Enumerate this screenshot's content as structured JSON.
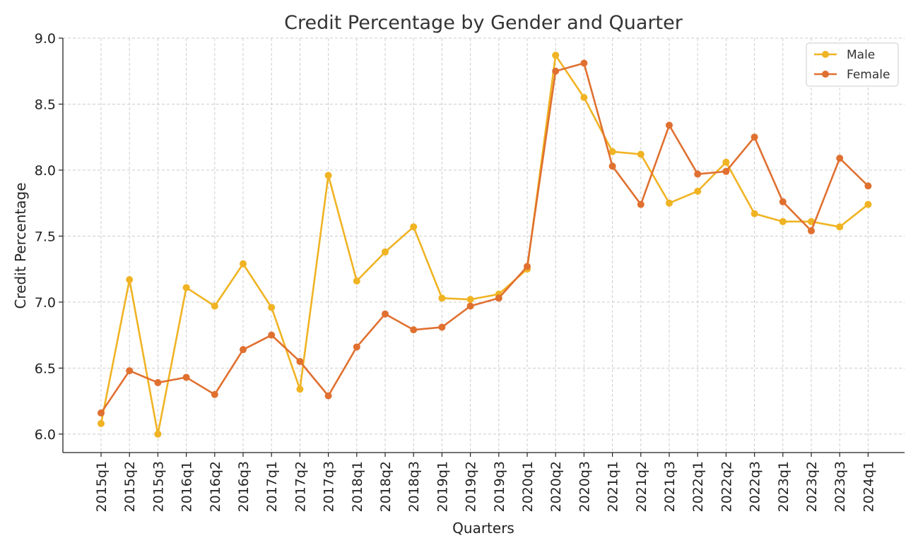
{
  "chart_data": {
    "type": "line",
    "title": "Credit Percentage by Gender and Quarter",
    "xlabel": "Quarters",
    "ylabel": "Credit Percentage",
    "ylim": [
      5.86,
      9.0
    ],
    "yticks": [
      "6.0",
      "6.5",
      "7.0",
      "7.5",
      "8.0",
      "8.5",
      "9.0"
    ],
    "grid": true,
    "legend_position": "top-right",
    "categories": [
      "2015q1",
      "2015q2",
      "2015q3",
      "2016q1",
      "2016q2",
      "2016q3",
      "2017q1",
      "2017q2",
      "2017q3",
      "2018q1",
      "2018q2",
      "2018q3",
      "2019q1",
      "2019q2",
      "2019q3",
      "2020q1",
      "2020q2",
      "2020q3",
      "2021q1",
      "2021q2",
      "2021q3",
      "2022q1",
      "2022q2",
      "2022q3",
      "2023q1",
      "2023q2",
      "2023q3",
      "2024q1"
    ],
    "series": [
      {
        "name": "Male",
        "color": "#f0b323",
        "values": [
          6.08,
          7.17,
          6.0,
          7.11,
          6.97,
          7.29,
          6.96,
          6.34,
          7.96,
          7.16,
          7.38,
          7.57,
          7.03,
          7.02,
          7.06,
          7.25,
          8.87,
          8.55,
          8.14,
          8.12,
          7.75,
          7.84,
          8.06,
          7.67,
          7.61,
          7.61,
          7.57,
          7.74
        ]
      },
      {
        "name": "Female",
        "color": "#e07030",
        "values": [
          6.16,
          6.48,
          6.39,
          6.43,
          6.3,
          6.64,
          6.75,
          6.55,
          6.29,
          6.66,
          6.91,
          6.79,
          6.81,
          6.97,
          7.03,
          7.27,
          8.75,
          8.81,
          8.03,
          7.74,
          8.34,
          7.97,
          7.99,
          8.25,
          7.76,
          7.54,
          8.09,
          7.88
        ]
      }
    ]
  }
}
